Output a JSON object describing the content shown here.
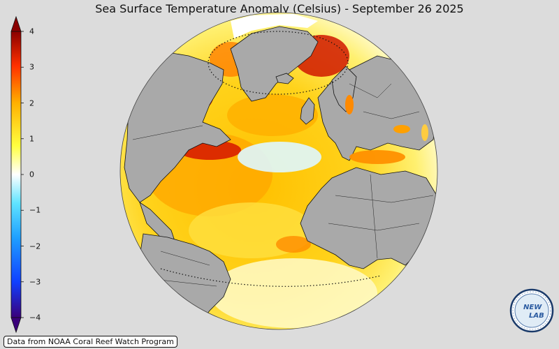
{
  "title": "Sea Surface Temperature Anomaly (Celsius) - September 26 2025",
  "colorbar": {
    "ticks": [
      "4",
      "3",
      "2",
      "1",
      "0",
      "−1",
      "−2",
      "−3",
      "−4"
    ],
    "min": -4,
    "max": 4,
    "colors": [
      "#3a007a",
      "#1040ff",
      "#1fa0ff",
      "#60e4ff",
      "#ffffff",
      "#ffff40",
      "#ffb000",
      "#ff3000",
      "#8a0000"
    ]
  },
  "map": {
    "land_color": "#a9a9a9",
    "ocean_palette": {
      "warm": "#ffb400",
      "hot": "#e02000",
      "mild": "#ffe030",
      "cool": "#bfefff"
    }
  },
  "credit": "Data from NOAA Coral Reef Watch Program",
  "logo": {
    "text_top": "NEW",
    "text_bottom": "LAB",
    "icon": "new-lab-logo-icon"
  }
}
